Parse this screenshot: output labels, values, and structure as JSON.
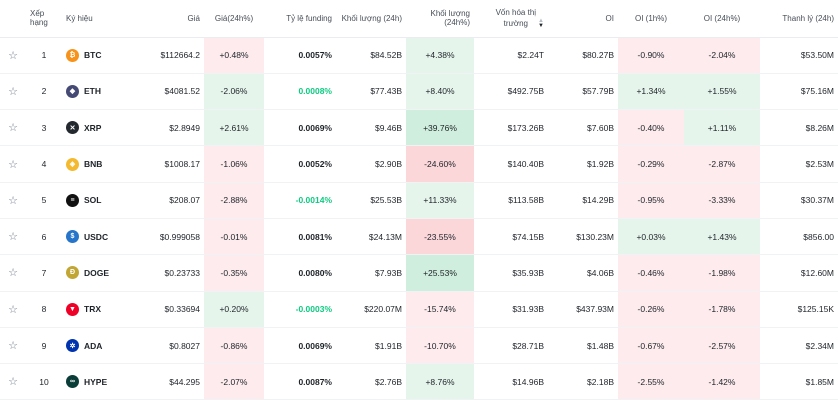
{
  "headers": {
    "rank": "Xếp hạng",
    "symbol": "Ký hiệu",
    "price": "Giá",
    "price24h": "Giá(24h%)",
    "funding": "Tỷ lệ funding",
    "volume": "Khối lượng (24h)",
    "volume_pct": "Khối lượng (24h%)",
    "mcap_line1": "Vốn hóa thị",
    "mcap_line2": "trường",
    "oi": "OI",
    "oi1h": "OI (1h%)",
    "oi24h": "OI (24h%)",
    "liq": "Thanh lý (24h)"
  },
  "rows": [
    {
      "rank": "1",
      "symbol": "BTC",
      "icon": "btc-icon",
      "color": "#f7931a",
      "glyph": "₿",
      "price": "$112664.2",
      "change": "+0.48%",
      "funding": "0.0057%",
      "volume": "$84.52B",
      "vol_pct": "+4.38%",
      "mcap": "$2.24T",
      "oi": "$80.27B",
      "oi1h": "-0.90%",
      "oi24h": "-2.04%",
      "liq": "$53.50M"
    },
    {
      "rank": "2",
      "symbol": "ETH",
      "icon": "eth-icon",
      "color": "#454a75",
      "glyph": "◆",
      "price": "$4081.52",
      "change": "-2.06%",
      "funding": "0.0008%",
      "volume": "$77.43B",
      "vol_pct": "+8.40%",
      "mcap": "$492.75B",
      "oi": "$57.79B",
      "oi1h": "+1.34%",
      "oi24h": "+1.55%",
      "liq": "$75.16M"
    },
    {
      "rank": "3",
      "symbol": "XRP",
      "icon": "xrp-icon",
      "color": "#23292f",
      "glyph": "✕",
      "price": "$2.8949",
      "change": "+2.61%",
      "funding": "0.0069%",
      "volume": "$9.46B",
      "vol_pct": "+39.76%",
      "mcap": "$173.26B",
      "oi": "$7.60B",
      "oi1h": "-0.40%",
      "oi24h": "+1.11%",
      "liq": "$8.26M"
    },
    {
      "rank": "4",
      "symbol": "BNB",
      "icon": "bnb-icon",
      "color": "#f3ba2f",
      "glyph": "◈",
      "price": "$1008.17",
      "change": "-1.06%",
      "funding": "0.0052%",
      "volume": "$2.90B",
      "vol_pct": "-24.60%",
      "mcap": "$140.40B",
      "oi": "$1.92B",
      "oi1h": "-0.29%",
      "oi24h": "-2.87%",
      "liq": "$2.53M"
    },
    {
      "rank": "5",
      "symbol": "SOL",
      "icon": "sol-icon",
      "color": "#111111",
      "glyph": "≡",
      "price": "$208.07",
      "change": "-2.88%",
      "funding": "-0.0014%",
      "volume": "$25.53B",
      "vol_pct": "+11.33%",
      "mcap": "$113.58B",
      "oi": "$14.29B",
      "oi1h": "-0.95%",
      "oi24h": "-3.33%",
      "liq": "$30.37M"
    },
    {
      "rank": "6",
      "symbol": "USDC",
      "icon": "usdc-icon",
      "color": "#2775ca",
      "glyph": "$",
      "price": "$0.999058",
      "change": "-0.01%",
      "funding": "0.0081%",
      "volume": "$24.13M",
      "vol_pct": "-23.55%",
      "mcap": "$74.15B",
      "oi": "$130.23M",
      "oi1h": "+0.03%",
      "oi24h": "+1.43%",
      "liq": "$856.00"
    },
    {
      "rank": "7",
      "symbol": "DOGE",
      "icon": "doge-icon",
      "color": "#c2a633",
      "glyph": "Ð",
      "price": "$0.23733",
      "change": "-0.35%",
      "funding": "0.0080%",
      "volume": "$7.93B",
      "vol_pct": "+25.53%",
      "mcap": "$35.93B",
      "oi": "$4.06B",
      "oi1h": "-0.46%",
      "oi24h": "-1.98%",
      "liq": "$12.60M"
    },
    {
      "rank": "8",
      "symbol": "TRX",
      "icon": "trx-icon",
      "color": "#ef0027",
      "glyph": "▼",
      "price": "$0.33694",
      "change": "+0.20%",
      "funding": "-0.0003%",
      "volume": "$220.07M",
      "vol_pct": "-15.74%",
      "mcap": "$31.93B",
      "oi": "$437.93M",
      "oi1h": "-0.26%",
      "oi24h": "-1.78%",
      "liq": "$125.15K"
    },
    {
      "rank": "9",
      "symbol": "ADA",
      "icon": "ada-icon",
      "color": "#0033ad",
      "glyph": "✲",
      "price": "$0.8027",
      "change": "-0.86%",
      "funding": "0.0069%",
      "volume": "$1.91B",
      "vol_pct": "-10.70%",
      "mcap": "$28.71B",
      "oi": "$1.48B",
      "oi1h": "-0.67%",
      "oi24h": "-2.57%",
      "liq": "$2.34M"
    },
    {
      "rank": "10",
      "symbol": "HYPE",
      "icon": "hype-icon",
      "color": "#0a3d38",
      "glyph": "∞",
      "price": "$44.295",
      "change": "-2.07%",
      "funding": "0.0087%",
      "volume": "$2.76B",
      "vol_pct": "+8.76%",
      "mcap": "$14.96B",
      "oi": "$2.18B",
      "oi1h": "-2.55%",
      "oi24h": "-1.42%",
      "liq": "$1.85M"
    }
  ]
}
